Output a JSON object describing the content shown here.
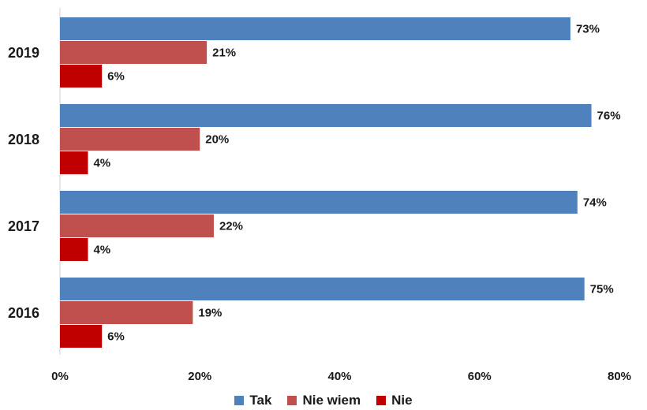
{
  "chart_data": {
    "type": "bar",
    "orientation": "horizontal",
    "categories": [
      "2019",
      "2018",
      "2017",
      "2016"
    ],
    "series": [
      {
        "name": "Tak",
        "color": "#4f81bd",
        "values": [
          73,
          76,
          74,
          75
        ],
        "labels": [
          "73%",
          "76%",
          "74%",
          "75%"
        ]
      },
      {
        "name": "Nie wiem",
        "color": "#c0504d",
        "values": [
          21,
          20,
          22,
          19
        ],
        "labels": [
          "21%",
          "20%",
          "22%",
          "19%"
        ]
      },
      {
        "name": "Nie",
        "color": "#c00000",
        "values": [
          6,
          4,
          4,
          6
        ],
        "labels": [
          "6%",
          "4%",
          "4%",
          "6%"
        ]
      }
    ],
    "xlim": [
      0,
      80
    ],
    "xticks": [
      0,
      20,
      40,
      60,
      80
    ],
    "xtick_labels": [
      "0%",
      "20%",
      "40%",
      "60%",
      "80%"
    ],
    "grid": false,
    "legend_position": "bottom"
  }
}
